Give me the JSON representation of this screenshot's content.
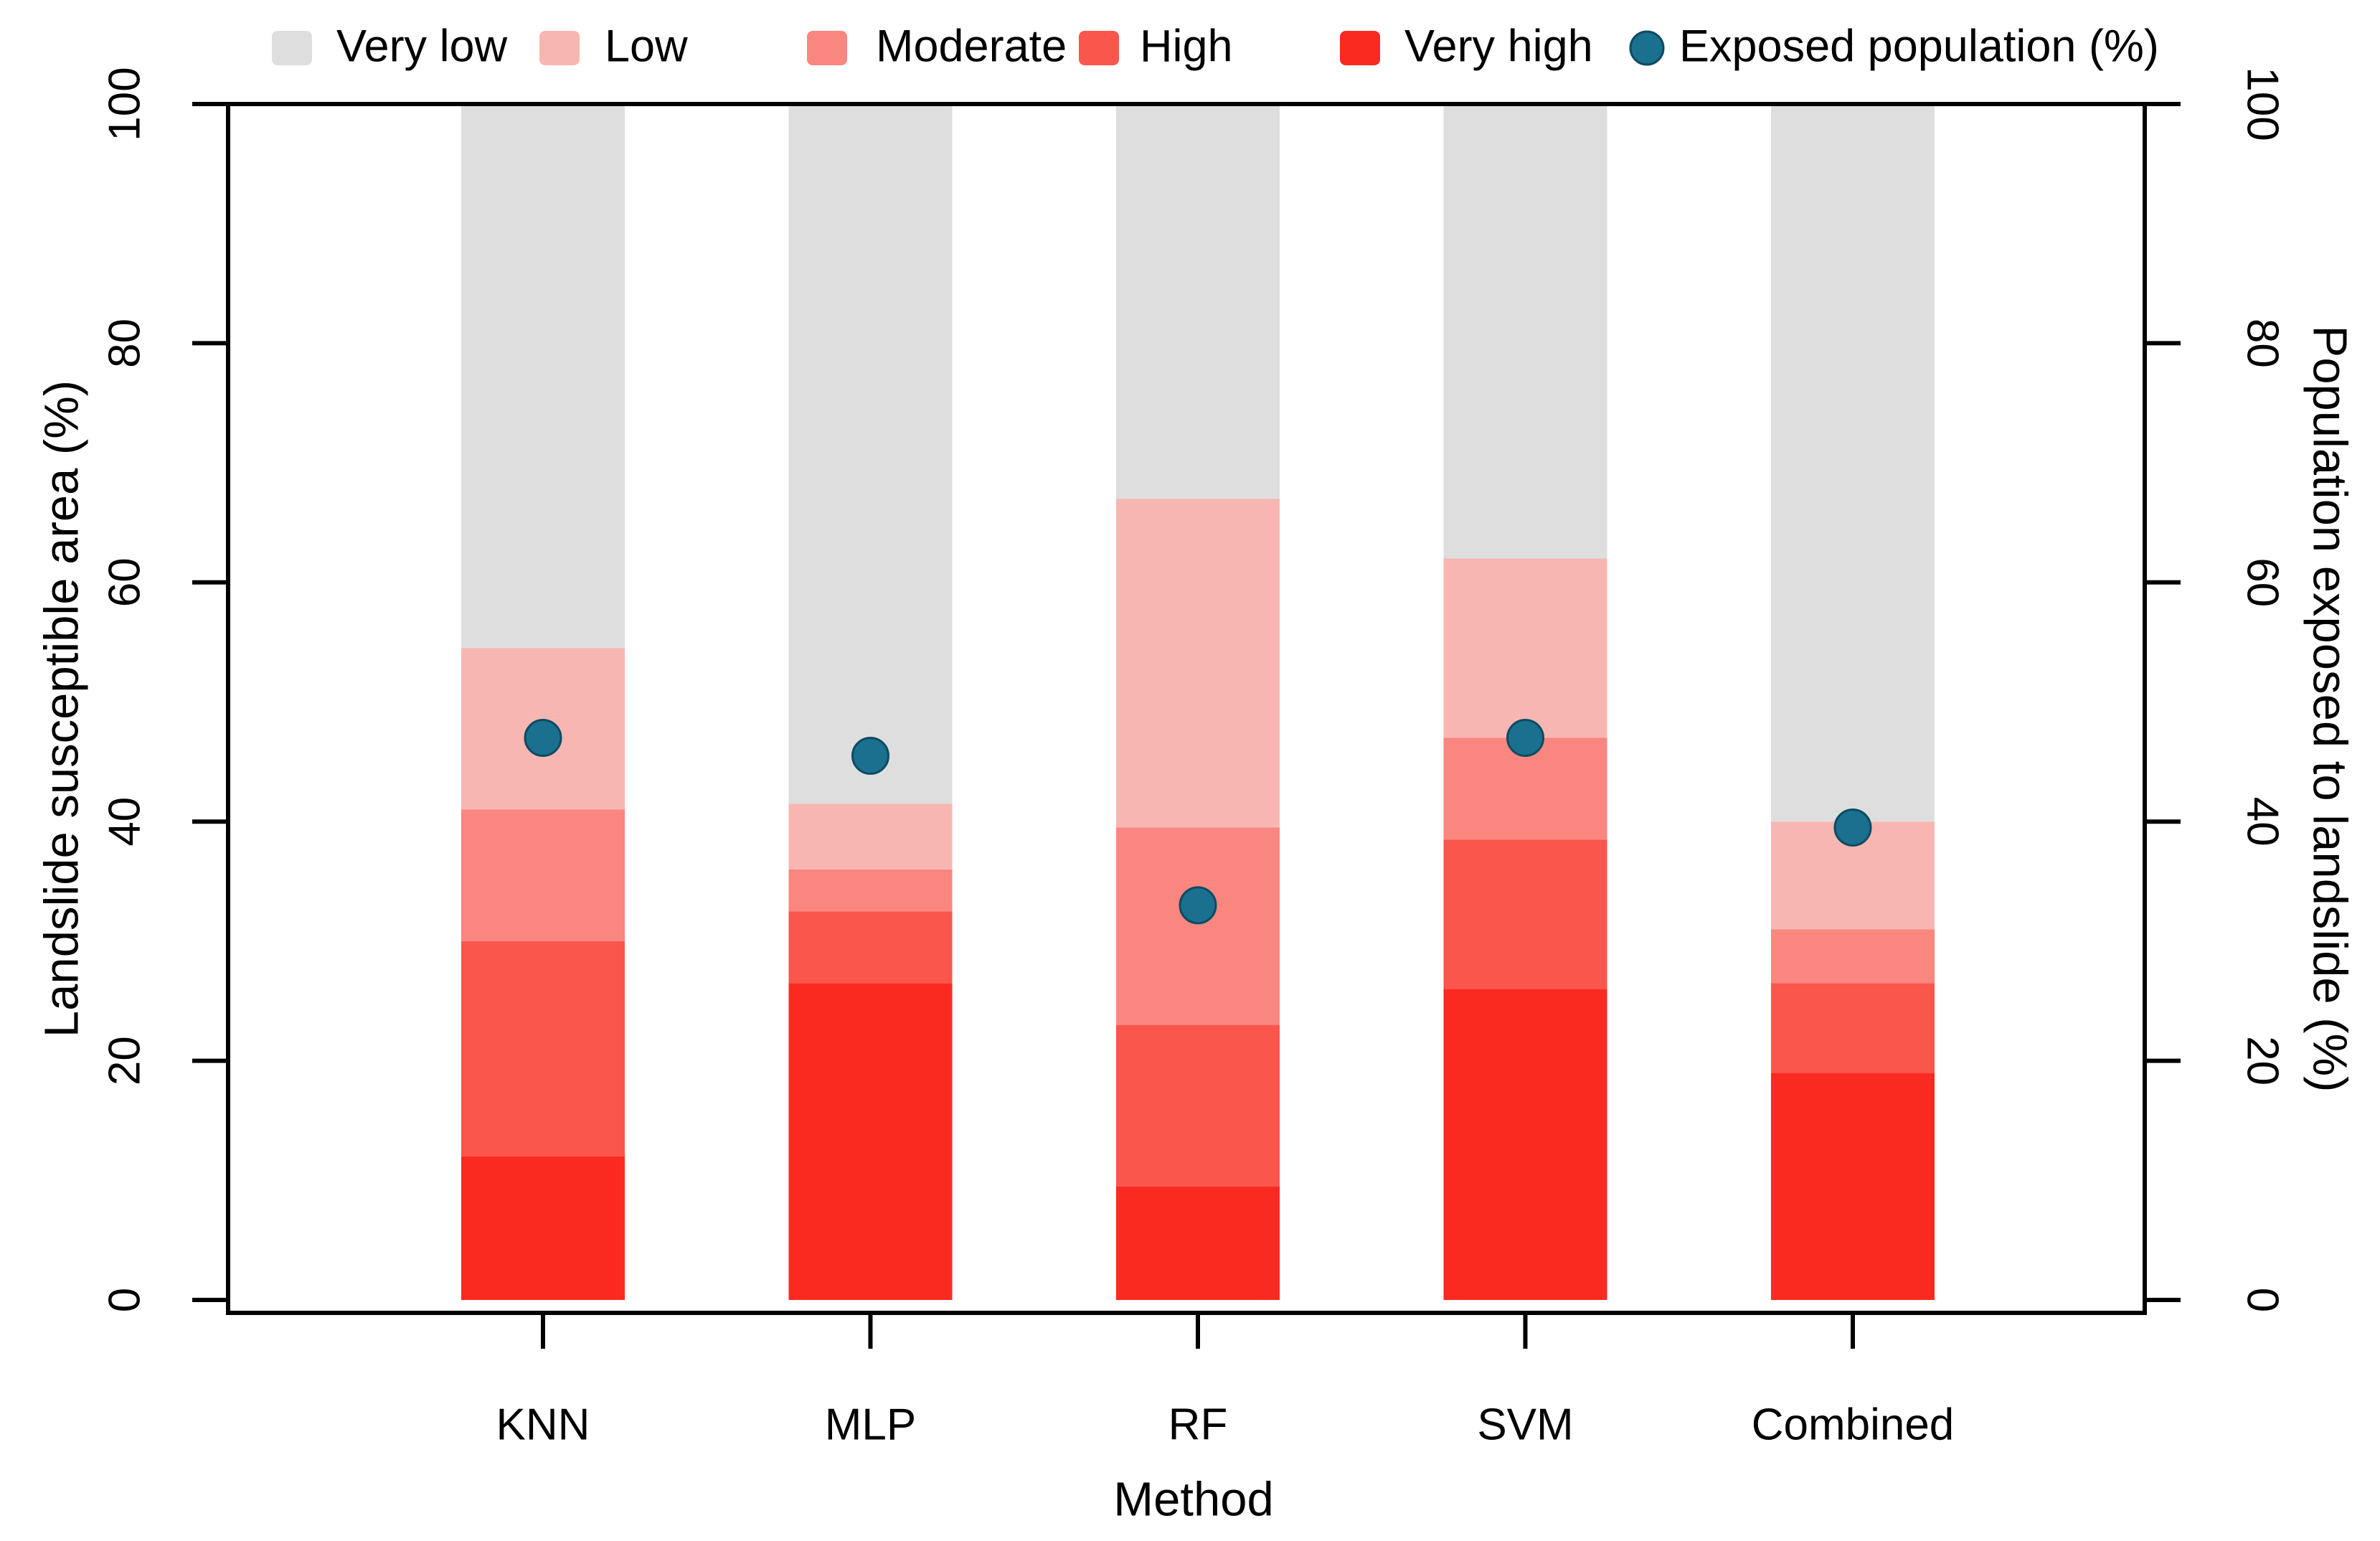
{
  "chart_data": {
    "type": "bar",
    "subtype": "stacked-percentage-bars-with-point-overlay",
    "title": "",
    "categories": [
      "KNN",
      "MLP",
      "RF",
      "SVM",
      "Combined"
    ],
    "stack_order_bottom_to_top": [
      "Very high",
      "High",
      "Moderate",
      "Low",
      "Very low"
    ],
    "series": [
      {
        "name": "Very low",
        "color": "#DEDEDE",
        "values": [
          45.5,
          58.5,
          33.0,
          38.0,
          60.0
        ]
      },
      {
        "name": "Low",
        "color": "#F8B6B3",
        "values": [
          13.5,
          5.5,
          27.5,
          15.0,
          9.0
        ]
      },
      {
        "name": "Moderate",
        "color": "#F9867F",
        "values": [
          11.0,
          3.5,
          16.5,
          8.5,
          4.5
        ]
      },
      {
        "name": "High",
        "color": "#FA564C",
        "values": [
          18.0,
          6.0,
          13.5,
          12.5,
          7.5
        ]
      },
      {
        "name": "Very high",
        "color": "#FB2A21",
        "values": [
          12.0,
          26.5,
          9.5,
          26.0,
          19.0
        ]
      }
    ],
    "points": {
      "name": "Exposed population (%)",
      "color": "#1B6F8F",
      "stroke_color": "#0C4B63",
      "values": [
        47.0,
        45.5,
        33.0,
        47.0,
        39.5
      ]
    },
    "x_axis": {
      "label": "Method"
    },
    "y_axis_left": {
      "label": "Landslide susceptible area (%)",
      "ticks": [
        "0",
        "20",
        "40",
        "60",
        "80",
        "100"
      ],
      "range": [
        0,
        100
      ]
    },
    "y_axis_right": {
      "label": "Population exposed to landslide (%)",
      "ticks": [
        "0",
        "20",
        "40",
        "60",
        "80",
        "100"
      ],
      "range": [
        0,
        100
      ]
    },
    "legend": {
      "position": "top",
      "entries": [
        "Very low",
        "Low",
        "Moderate",
        "High",
        "Very high",
        "Exposed population (%)"
      ]
    },
    "colors": {
      "axis": "#000000",
      "background": "#FFFFFF",
      "text": "#000000"
    }
  }
}
